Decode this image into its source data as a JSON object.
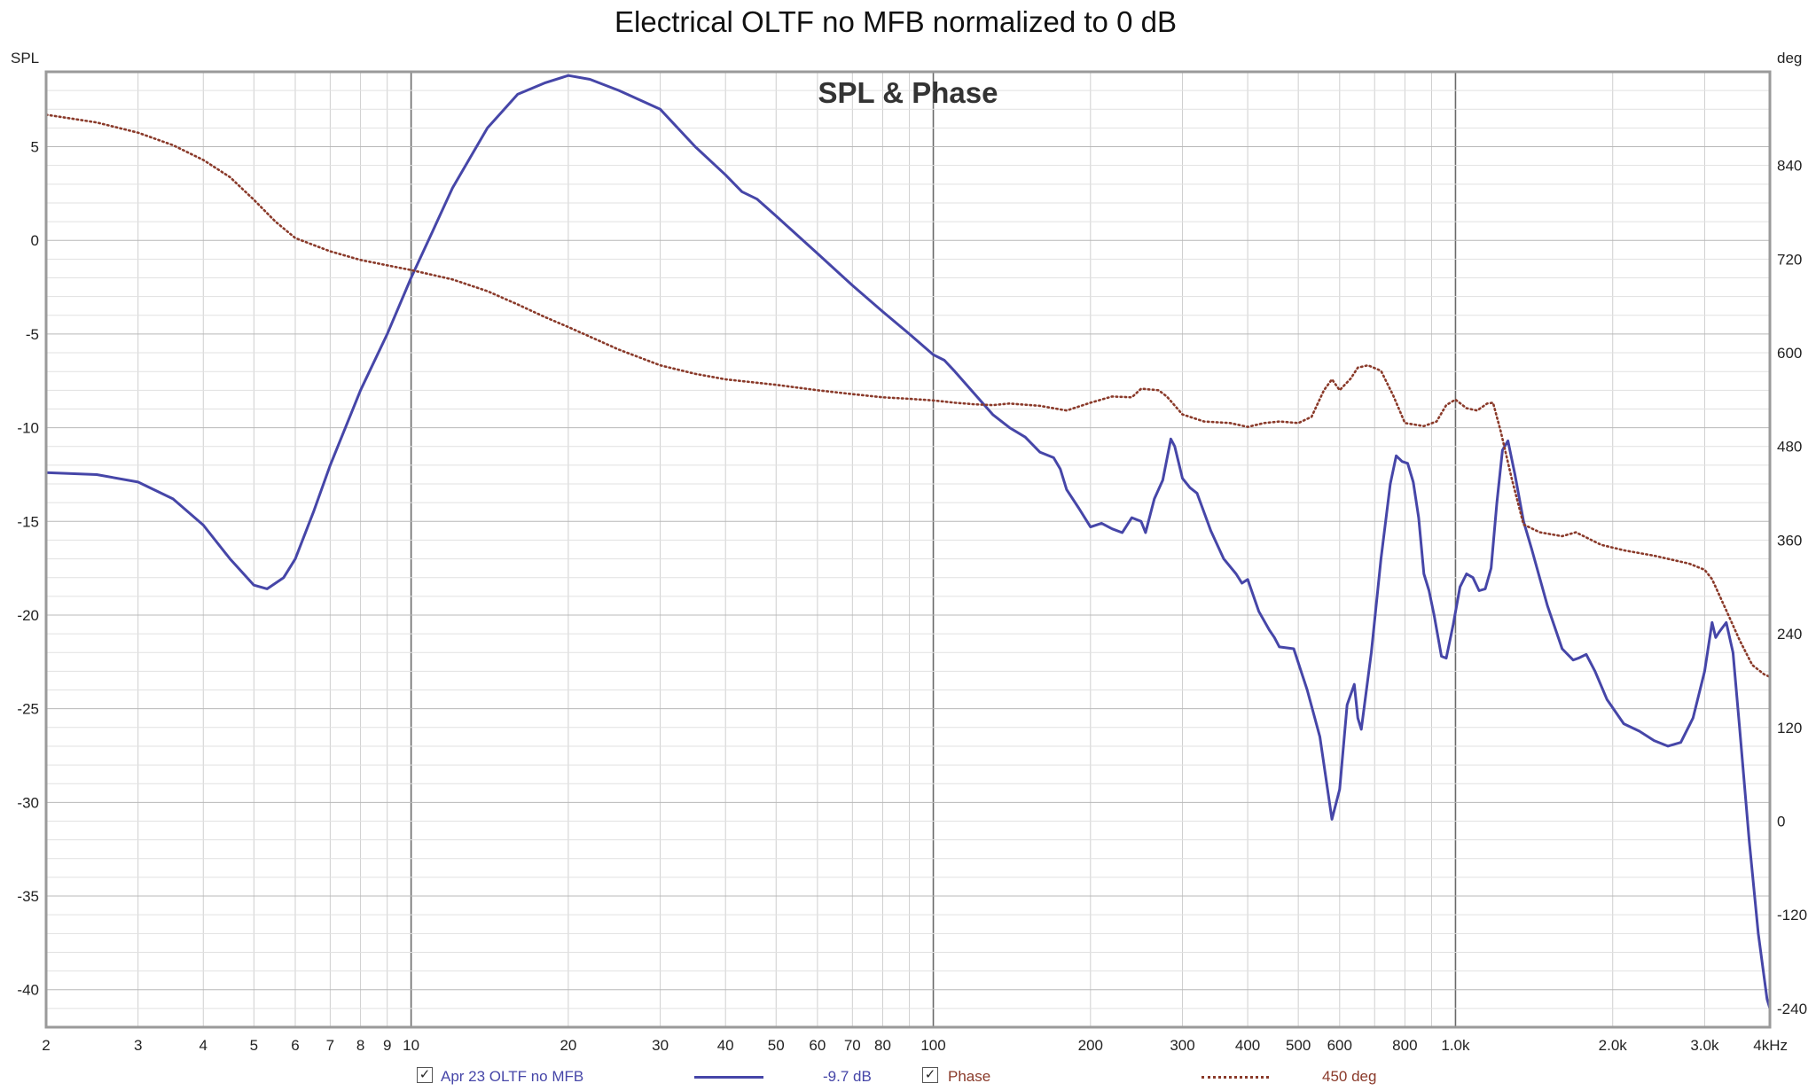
{
  "chart_data": {
    "type": "line",
    "title": "Electrical OLTF no MFB normalized to 0 dB",
    "subtitle": "SPL & Phase",
    "x_scale": "log",
    "xlim": [
      2,
      4000
    ],
    "x_ticks": [
      2,
      3,
      4,
      5,
      6,
      7,
      8,
      9,
      10,
      20,
      30,
      40,
      50,
      60,
      70,
      80,
      100,
      200,
      300,
      400,
      500,
      600,
      800,
      1000,
      2000,
      3000,
      4000
    ],
    "x_tick_labels": [
      "2",
      "3",
      "4",
      "5",
      "6",
      "7",
      "8",
      "9",
      "10",
      "20",
      "30",
      "40",
      "50",
      "60",
      "70",
      "80",
      "100",
      "200",
      "300",
      "400",
      "500",
      "600",
      "800",
      "1.0k",
      "2.0k",
      "3.0k",
      "4kHz"
    ],
    "ylabel_left": "SPL",
    "ylim_left": [
      -42,
      9
    ],
    "y_ticks_left": [
      5,
      0,
      -5,
      -10,
      -15,
      -20,
      -25,
      -30,
      -35,
      -40
    ],
    "y_tick_labels_left": [
      "5",
      "0",
      "-5",
      "-10",
      "-15",
      "-20",
      "-25",
      "-30",
      "-35",
      "-40"
    ],
    "ylabel_right": "deg",
    "ylim_right": [
      -264,
      960
    ],
    "y_ticks_right": [
      840,
      720,
      600,
      480,
      360,
      240,
      120,
      0,
      -120,
      -240
    ],
    "y_tick_labels_right": [
      "840",
      "720",
      "600",
      "480",
      "360",
      "240",
      "120",
      "0",
      "-120",
      "-240"
    ],
    "grid": true,
    "legend_position": "bottom",
    "series": [
      {
        "name": "Apr 23 OLTF no MFB",
        "legend_value": "-9.7 dB",
        "axis": "left",
        "style": "solid",
        "color": "#4646a8",
        "points": [
          [
            2,
            -12.4
          ],
          [
            2.5,
            -12.5
          ],
          [
            3,
            -12.9
          ],
          [
            3.5,
            -13.8
          ],
          [
            4,
            -15.2
          ],
          [
            4.5,
            -17
          ],
          [
            5,
            -18.4
          ],
          [
            5.3,
            -18.6
          ],
          [
            5.7,
            -18
          ],
          [
            6,
            -17
          ],
          [
            6.5,
            -14.5
          ],
          [
            7,
            -12
          ],
          [
            8,
            -8
          ],
          [
            9,
            -5
          ],
          [
            10,
            -2
          ],
          [
            11,
            0.5
          ],
          [
            12,
            2.8
          ],
          [
            14,
            6
          ],
          [
            16,
            7.8
          ],
          [
            18,
            8.4
          ],
          [
            20,
            8.8
          ],
          [
            22,
            8.6
          ],
          [
            25,
            8
          ],
          [
            30,
            7
          ],
          [
            35,
            5
          ],
          [
            40,
            3.5
          ],
          [
            43,
            2.6
          ],
          [
            46,
            2.2
          ],
          [
            50,
            1.3
          ],
          [
            60,
            -0.7
          ],
          [
            70,
            -2.4
          ],
          [
            80,
            -3.8
          ],
          [
            90,
            -5
          ],
          [
            100,
            -6.1
          ],
          [
            105,
            -6.4
          ],
          [
            110,
            -7
          ],
          [
            120,
            -8.2
          ],
          [
            130,
            -9.3
          ],
          [
            140,
            -10
          ],
          [
            150,
            -10.5
          ],
          [
            160,
            -11.3
          ],
          [
            170,
            -11.6
          ],
          [
            175,
            -12.2
          ],
          [
            180,
            -13.3
          ],
          [
            190,
            -14.3
          ],
          [
            200,
            -15.3
          ],
          [
            210,
            -15.1
          ],
          [
            220,
            -15.4
          ],
          [
            230,
            -15.6
          ],
          [
            240,
            -14.8
          ],
          [
            250,
            -15
          ],
          [
            255,
            -15.6
          ],
          [
            265,
            -13.8
          ],
          [
            275,
            -12.8
          ],
          [
            285,
            -10.6
          ],
          [
            290,
            -11
          ],
          [
            300,
            -12.7
          ],
          [
            310,
            -13.2
          ],
          [
            320,
            -13.5
          ],
          [
            340,
            -15.5
          ],
          [
            360,
            -17
          ],
          [
            380,
            -17.8
          ],
          [
            390,
            -18.3
          ],
          [
            400,
            -18.1
          ],
          [
            420,
            -19.8
          ],
          [
            440,
            -20.8
          ],
          [
            450,
            -21.2
          ],
          [
            460,
            -21.7
          ],
          [
            490,
            -21.8
          ],
          [
            520,
            -24
          ],
          [
            550,
            -26.5
          ],
          [
            580,
            -30.9
          ],
          [
            600,
            -29.3
          ],
          [
            620,
            -24.8
          ],
          [
            640,
            -23.7
          ],
          [
            650,
            -25.5
          ],
          [
            660,
            -26.1
          ],
          [
            690,
            -22
          ],
          [
            720,
            -17
          ],
          [
            750,
            -13
          ],
          [
            770,
            -11.5
          ],
          [
            790,
            -11.8
          ],
          [
            810,
            -11.9
          ],
          [
            830,
            -12.9
          ],
          [
            850,
            -14.8
          ],
          [
            870,
            -17.8
          ],
          [
            890,
            -18.7
          ],
          [
            910,
            -20
          ],
          [
            940,
            -22.2
          ],
          [
            960,
            -22.3
          ],
          [
            990,
            -20.5
          ],
          [
            1020,
            -18.5
          ],
          [
            1050,
            -17.8
          ],
          [
            1080,
            -18
          ],
          [
            1110,
            -18.7
          ],
          [
            1140,
            -18.6
          ],
          [
            1170,
            -17.5
          ],
          [
            1200,
            -14
          ],
          [
            1230,
            -11.2
          ],
          [
            1260,
            -10.7
          ],
          [
            1300,
            -12.5
          ],
          [
            1350,
            -15
          ],
          [
            1400,
            -16.5
          ],
          [
            1500,
            -19.5
          ],
          [
            1600,
            -21.8
          ],
          [
            1680,
            -22.4
          ],
          [
            1720,
            -22.3
          ],
          [
            1780,
            -22.1
          ],
          [
            1850,
            -23
          ],
          [
            1950,
            -24.5
          ],
          [
            2100,
            -25.8
          ],
          [
            2250,
            -26.2
          ],
          [
            2400,
            -26.7
          ],
          [
            2550,
            -27
          ],
          [
            2700,
            -26.8
          ],
          [
            2850,
            -25.5
          ],
          [
            3000,
            -23
          ],
          [
            3100,
            -20.4
          ],
          [
            3150,
            -21.2
          ],
          [
            3200,
            -20.9
          ],
          [
            3300,
            -20.4
          ],
          [
            3400,
            -22
          ],
          [
            3500,
            -26
          ],
          [
            3650,
            -32
          ],
          [
            3800,
            -37
          ],
          [
            3950,
            -40.5
          ],
          [
            4000,
            -41
          ]
        ]
      },
      {
        "name": "Phase",
        "legend_value": "450 deg",
        "axis": "right",
        "style": "dotted",
        "color": "#8a3a2a",
        "points": [
          [
            2,
            905
          ],
          [
            2.5,
            895
          ],
          [
            3,
            882
          ],
          [
            3.5,
            866
          ],
          [
            4,
            847
          ],
          [
            4.5,
            825
          ],
          [
            5,
            796
          ],
          [
            5.5,
            768
          ],
          [
            6,
            747
          ],
          [
            7,
            730
          ],
          [
            8,
            719
          ],
          [
            9,
            712
          ],
          [
            10,
            706
          ],
          [
            12,
            694
          ],
          [
            14,
            679
          ],
          [
            16,
            662
          ],
          [
            18,
            646
          ],
          [
            20,
            633
          ],
          [
            25,
            604
          ],
          [
            30,
            584
          ],
          [
            35,
            573
          ],
          [
            40,
            566
          ],
          [
            50,
            559
          ],
          [
            60,
            552
          ],
          [
            70,
            547
          ],
          [
            80,
            543
          ],
          [
            90,
            541
          ],
          [
            100,
            539
          ],
          [
            110,
            536
          ],
          [
            120,
            534
          ],
          [
            130,
            533
          ],
          [
            140,
            535
          ],
          [
            160,
            532
          ],
          [
            180,
            526
          ],
          [
            200,
            536
          ],
          [
            220,
            544
          ],
          [
            240,
            543
          ],
          [
            250,
            554
          ],
          [
            270,
            552
          ],
          [
            280,
            544
          ],
          [
            300,
            521
          ],
          [
            330,
            512
          ],
          [
            370,
            510
          ],
          [
            400,
            505
          ],
          [
            430,
            510
          ],
          [
            460,
            512
          ],
          [
            500,
            510
          ],
          [
            530,
            518
          ],
          [
            560,
            552
          ],
          [
            580,
            566
          ],
          [
            600,
            552
          ],
          [
            630,
            567
          ],
          [
            650,
            581
          ],
          [
            680,
            584
          ],
          [
            720,
            577
          ],
          [
            760,
            545
          ],
          [
            800,
            510
          ],
          [
            870,
            506
          ],
          [
            920,
            512
          ],
          [
            960,
            533
          ],
          [
            1000,
            540
          ],
          [
            1050,
            529
          ],
          [
            1100,
            526
          ],
          [
            1150,
            535
          ],
          [
            1180,
            536
          ],
          [
            1220,
            500
          ],
          [
            1280,
            440
          ],
          [
            1350,
            380
          ],
          [
            1450,
            370
          ],
          [
            1600,
            365
          ],
          [
            1700,
            370
          ],
          [
            1900,
            354
          ],
          [
            2100,
            347
          ],
          [
            2400,
            340
          ],
          [
            2800,
            330
          ],
          [
            3000,
            322
          ],
          [
            3100,
            310
          ],
          [
            3300,
            270
          ],
          [
            3500,
            232
          ],
          [
            3700,
            200
          ],
          [
            3900,
            188
          ],
          [
            4000,
            185
          ]
        ]
      }
    ]
  }
}
